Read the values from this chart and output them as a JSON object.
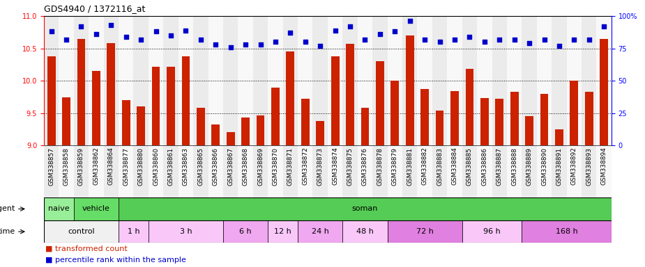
{
  "title": "GDS4940 / 1372116_at",
  "categories": [
    "GSM338857",
    "GSM338858",
    "GSM338859",
    "GSM338862",
    "GSM338864",
    "GSM338877",
    "GSM338880",
    "GSM338860",
    "GSM338861",
    "GSM338863",
    "GSM338865",
    "GSM338866",
    "GSM338867",
    "GSM338868",
    "GSM338869",
    "GSM338870",
    "GSM338871",
    "GSM338872",
    "GSM338873",
    "GSM338874",
    "GSM338875",
    "GSM338876",
    "GSM338878",
    "GSM338879",
    "GSM338881",
    "GSM338882",
    "GSM338883",
    "GSM338884",
    "GSM338885",
    "GSM338886",
    "GSM338887",
    "GSM338888",
    "GSM338889",
    "GSM338890",
    "GSM338891",
    "GSM338892",
    "GSM338893",
    "GSM338894"
  ],
  "bar_values": [
    10.38,
    9.74,
    10.65,
    10.15,
    10.58,
    9.7,
    9.6,
    10.22,
    10.22,
    10.38,
    9.58,
    9.33,
    9.21,
    9.43,
    9.47,
    9.89,
    10.45,
    9.72,
    9.38,
    10.38,
    10.57,
    9.58,
    10.3,
    10.0,
    10.7,
    9.87,
    9.54,
    9.84,
    10.18,
    9.73,
    9.72,
    9.83,
    9.45,
    9.8,
    9.25,
    10.0,
    9.83,
    10.65
  ],
  "percentile_values": [
    88,
    82,
    92,
    86,
    93,
    84,
    82,
    88,
    85,
    89,
    82,
    78,
    76,
    78,
    78,
    80,
    87,
    80,
    77,
    89,
    92,
    82,
    86,
    88,
    96,
    82,
    80,
    82,
    84,
    80,
    82,
    82,
    79,
    82,
    77,
    82,
    82,
    92
  ],
  "bar_color": "#cc2200",
  "percentile_color": "#0000cc",
  "ylim_left": [
    9.0,
    11.0
  ],
  "ylim_right": [
    0,
    100
  ],
  "yticks_left": [
    9.0,
    9.5,
    10.0,
    10.5,
    11.0
  ],
  "yticks_right": [
    0,
    25,
    50,
    75,
    100
  ],
  "agent_groups": [
    {
      "label": "naive",
      "start": 0,
      "end": 2,
      "color": "#99ee99"
    },
    {
      "label": "vehicle",
      "start": 2,
      "end": 5,
      "color": "#66dd66"
    },
    {
      "label": "soman",
      "start": 5,
      "end": 38,
      "color": "#55cc55"
    }
  ],
  "time_groups": [
    {
      "label": "control",
      "start": 0,
      "end": 5,
      "color": "#f0f0f0"
    },
    {
      "label": "1 h",
      "start": 5,
      "end": 7,
      "color": "#f9c8f9"
    },
    {
      "label": "3 h",
      "start": 7,
      "end": 12,
      "color": "#f9c8f9"
    },
    {
      "label": "6 h",
      "start": 12,
      "end": 15,
      "color": "#f0a8f0"
    },
    {
      "label": "12 h",
      "start": 15,
      "end": 17,
      "color": "#f9c8f9"
    },
    {
      "label": "24 h",
      "start": 17,
      "end": 20,
      "color": "#f0a8f0"
    },
    {
      "label": "48 h",
      "start": 20,
      "end": 23,
      "color": "#f9c8f9"
    },
    {
      "label": "72 h",
      "start": 23,
      "end": 28,
      "color": "#e080e0"
    },
    {
      "label": "96 h",
      "start": 28,
      "end": 32,
      "color": "#f9c8f9"
    },
    {
      "label": "168 h",
      "start": 32,
      "end": 38,
      "color": "#e080e0"
    }
  ],
  "bg_even": "#ebebeb",
  "bg_odd": "#f8f8f8",
  "title_fontsize": 9,
  "tick_fontsize": 7,
  "bar_label_fontsize": 6.5,
  "row_label_fontsize": 8,
  "row_group_fontsize": 8
}
